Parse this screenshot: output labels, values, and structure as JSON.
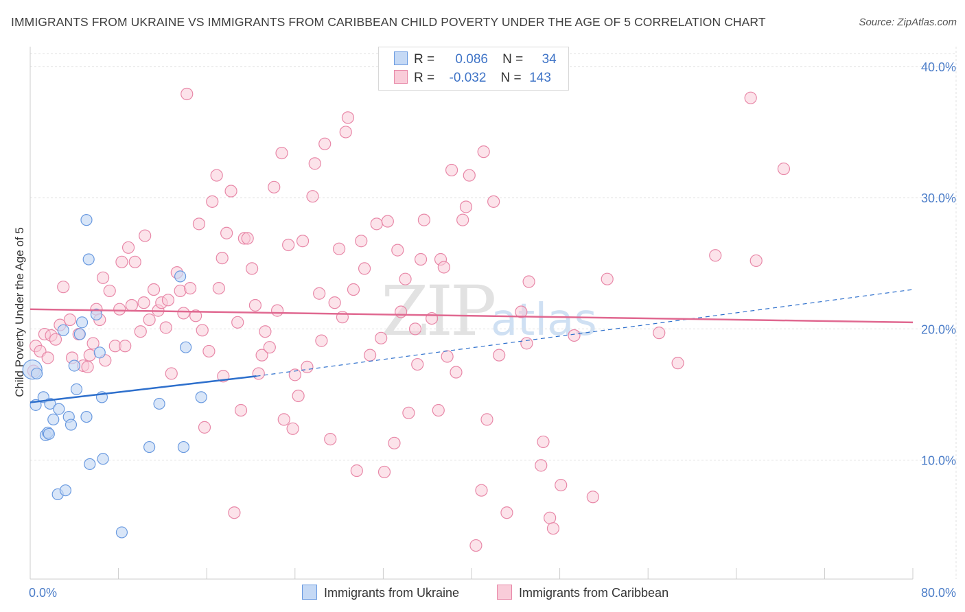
{
  "title": "IMMIGRANTS FROM UKRAINE VS IMMIGRANTS FROM CARIBBEAN CHILD POVERTY UNDER THE AGE OF 5 CORRELATION CHART",
  "source": "Source: ZipAtlas.com",
  "watermark": {
    "zip": "ZIP",
    "atlas": "atlas"
  },
  "legend": {
    "r_label": "R =",
    "n_label": "N =",
    "ukraine": {
      "r": "0.086",
      "n": "34"
    },
    "caribbean": {
      "r": "-0.032",
      "n": "143"
    }
  },
  "colors": {
    "ukraine_fill": "#c5d9f5",
    "ukraine_stroke": "#6a9ae0",
    "ukraine_line": "#2d6fcc",
    "caribbean_fill": "#f9ccd9",
    "caribbean_stroke": "#e888a8",
    "caribbean_line": "#e06890",
    "axis_text": "#4a7cc8",
    "grid": "#e0e0e0"
  },
  "chart_data": {
    "type": "scatter",
    "title": "IMMIGRANTS FROM UKRAINE VS IMMIGRANTS FROM CARIBBEAN CHILD POVERTY UNDER THE AGE OF 5 CORRELATION CHART",
    "xlabel": "",
    "ylabel": "Child Poverty Under the Age of 5",
    "xlim": [
      0,
      80
    ],
    "ylim": [
      0,
      40
    ],
    "x_tick_labels": [
      "0.0%",
      "80.0%"
    ],
    "y_ticks": [
      10,
      20,
      30,
      40
    ],
    "y_tick_labels": [
      "10.0%",
      "20.0%",
      "30.0%",
      "40.0%"
    ],
    "grid": true,
    "series": [
      {
        "name": "Immigrants from Ukraine",
        "trend": {
          "x": [
            0,
            20.5
          ],
          "y": [
            14.4,
            16.4
          ],
          "dashed_to": [
            80,
            23.0
          ]
        },
        "points": [
          [
            0.2,
            16.9
          ],
          [
            0.6,
            16.6
          ],
          [
            0.5,
            14.2
          ],
          [
            1.2,
            14.8
          ],
          [
            1.8,
            14.3
          ],
          [
            1.4,
            11.9
          ],
          [
            1.6,
            12.1
          ],
          [
            1.7,
            12.0
          ],
          [
            2.1,
            13.1
          ],
          [
            2.6,
            13.9
          ],
          [
            3.5,
            13.3
          ],
          [
            3.7,
            12.7
          ],
          [
            2.5,
            7.4
          ],
          [
            3.2,
            7.7
          ],
          [
            4.2,
            15.4
          ],
          [
            4.0,
            17.2
          ],
          [
            3.0,
            19.9
          ],
          [
            4.5,
            19.6
          ],
          [
            4.7,
            20.5
          ],
          [
            6.0,
            21.1
          ],
          [
            6.3,
            18.2
          ],
          [
            5.1,
            13.3
          ],
          [
            6.5,
            14.8
          ],
          [
            5.3,
            25.3
          ],
          [
            5.1,
            28.3
          ],
          [
            5.4,
            9.7
          ],
          [
            6.6,
            10.1
          ],
          [
            8.3,
            4.5
          ],
          [
            10.8,
            11.0
          ],
          [
            11.7,
            14.3
          ],
          [
            13.6,
            24.0
          ],
          [
            14.1,
            18.6
          ],
          [
            13.9,
            11.0
          ],
          [
            15.5,
            14.8
          ]
        ]
      },
      {
        "name": "Immigrants from Caribbean",
        "trend": {
          "x": [
            0,
            80
          ],
          "y": [
            21.5,
            20.5
          ]
        },
        "points": [
          [
            0.3,
            16.8
          ],
          [
            0.5,
            18.7
          ],
          [
            0.9,
            18.3
          ],
          [
            1.3,
            19.6
          ],
          [
            1.6,
            17.8
          ],
          [
            1.9,
            19.5
          ],
          [
            2.3,
            19.2
          ],
          [
            2.7,
            20.3
          ],
          [
            3.0,
            23.2
          ],
          [
            3.6,
            20.7
          ],
          [
            3.8,
            17.8
          ],
          [
            4.4,
            19.6
          ],
          [
            4.8,
            17.2
          ],
          [
            5.2,
            17.1
          ],
          [
            5.4,
            18.0
          ],
          [
            5.7,
            18.9
          ],
          [
            6.0,
            21.5
          ],
          [
            6.3,
            20.7
          ],
          [
            6.6,
            23.9
          ],
          [
            6.8,
            17.6
          ],
          [
            7.2,
            22.9
          ],
          [
            7.7,
            18.7
          ],
          [
            8.1,
            21.5
          ],
          [
            8.3,
            25.1
          ],
          [
            8.6,
            18.7
          ],
          [
            8.9,
            26.2
          ],
          [
            9.2,
            21.8
          ],
          [
            9.5,
            25.1
          ],
          [
            10.0,
            19.8
          ],
          [
            10.3,
            22.0
          ],
          [
            10.4,
            27.1
          ],
          [
            10.8,
            20.7
          ],
          [
            11.2,
            23.0
          ],
          [
            11.6,
            21.4
          ],
          [
            11.9,
            22.0
          ],
          [
            12.3,
            20.1
          ],
          [
            12.5,
            22.2
          ],
          [
            12.8,
            16.6
          ],
          [
            13.3,
            24.3
          ],
          [
            13.6,
            22.9
          ],
          [
            13.9,
            21.2
          ],
          [
            14.2,
            37.9
          ],
          [
            14.5,
            23.1
          ],
          [
            15.0,
            21.0
          ],
          [
            15.3,
            28.0
          ],
          [
            15.6,
            19.9
          ],
          [
            15.8,
            12.5
          ],
          [
            16.2,
            18.3
          ],
          [
            16.5,
            29.7
          ],
          [
            16.9,
            31.7
          ],
          [
            17.1,
            23.1
          ],
          [
            17.4,
            25.4
          ],
          [
            17.5,
            16.4
          ],
          [
            17.8,
            27.3
          ],
          [
            18.2,
            30.5
          ],
          [
            18.5,
            6.0
          ],
          [
            18.8,
            20.5
          ],
          [
            19.1,
            13.8
          ],
          [
            19.4,
            26.9
          ],
          [
            19.7,
            26.9
          ],
          [
            20.1,
            24.6
          ],
          [
            20.4,
            21.8
          ],
          [
            20.7,
            16.6
          ],
          [
            21.0,
            18.0
          ],
          [
            21.3,
            19.8
          ],
          [
            21.7,
            18.6
          ],
          [
            22.1,
            30.8
          ],
          [
            22.4,
            21.4
          ],
          [
            22.8,
            33.4
          ],
          [
            23.0,
            13.1
          ],
          [
            23.4,
            26.4
          ],
          [
            23.8,
            12.4
          ],
          [
            24.0,
            16.5
          ],
          [
            24.3,
            14.9
          ],
          [
            24.7,
            26.7
          ],
          [
            25.1,
            17.1
          ],
          [
            25.6,
            30.1
          ],
          [
            25.8,
            32.6
          ],
          [
            26.2,
            22.7
          ],
          [
            26.4,
            19.1
          ],
          [
            26.7,
            34.1
          ],
          [
            27.2,
            11.6
          ],
          [
            27.6,
            22.0
          ],
          [
            28.0,
            26.1
          ],
          [
            28.3,
            20.9
          ],
          [
            28.6,
            35.0
          ],
          [
            28.8,
            36.1
          ],
          [
            29.3,
            23.0
          ],
          [
            29.6,
            9.2
          ],
          [
            30.0,
            26.7
          ],
          [
            30.3,
            24.6
          ],
          [
            30.8,
            18.0
          ],
          [
            31.4,
            28.0
          ],
          [
            31.8,
            19.3
          ],
          [
            32.1,
            9.1
          ],
          [
            32.4,
            28.2
          ],
          [
            33.0,
            11.3
          ],
          [
            33.3,
            26.0
          ],
          [
            33.6,
            21.3
          ],
          [
            34.0,
            23.8
          ],
          [
            34.3,
            13.6
          ],
          [
            34.9,
            20.0
          ],
          [
            35.1,
            17.3
          ],
          [
            35.4,
            25.3
          ],
          [
            35.7,
            28.3
          ],
          [
            36.4,
            20.8
          ],
          [
            37.0,
            13.8
          ],
          [
            37.2,
            25.3
          ],
          [
            37.5,
            24.7
          ],
          [
            37.8,
            17.9
          ],
          [
            38.2,
            32.1
          ],
          [
            38.6,
            16.7
          ],
          [
            39.2,
            28.3
          ],
          [
            39.5,
            29.3
          ],
          [
            39.8,
            31.7
          ],
          [
            40.4,
            3.5
          ],
          [
            40.9,
            7.7
          ],
          [
            41.1,
            33.5
          ],
          [
            41.4,
            13.1
          ],
          [
            42.0,
            29.7
          ],
          [
            42.5,
            18.0
          ],
          [
            43.2,
            6.0
          ],
          [
            44.5,
            21.3
          ],
          [
            45.0,
            18.9
          ],
          [
            45.2,
            23.6
          ],
          [
            46.3,
            9.6
          ],
          [
            46.5,
            11.4
          ],
          [
            47.1,
            5.6
          ],
          [
            47.4,
            4.8
          ],
          [
            48.1,
            8.1
          ],
          [
            49.3,
            19.5
          ],
          [
            51.0,
            7.2
          ],
          [
            52.3,
            23.8
          ],
          [
            57.0,
            19.7
          ],
          [
            58.7,
            17.4
          ],
          [
            62.1,
            25.6
          ],
          [
            65.8,
            25.2
          ],
          [
            65.3,
            37.6
          ],
          [
            68.3,
            32.2
          ]
        ]
      }
    ]
  },
  "bottom_legend": {
    "ukraine": "Immigrants from Ukraine",
    "caribbean": "Immigrants from Caribbean"
  }
}
